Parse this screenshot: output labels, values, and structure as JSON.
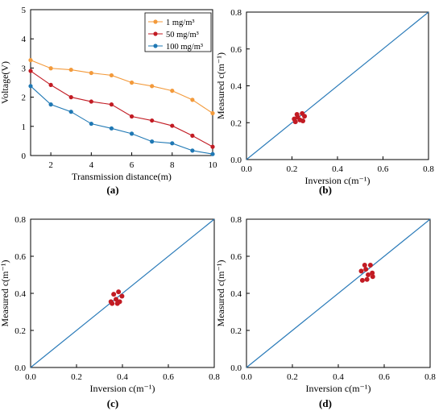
{
  "chart_data": [
    {
      "type": "line",
      "panel_label": "(a)",
      "xlabel": "Transmission distance(m)",
      "ylabel": "Voltage(V)",
      "xlim": [
        1,
        10
      ],
      "ylim": [
        0,
        5
      ],
      "xticks": [
        2,
        4,
        6,
        8,
        10
      ],
      "yticks": [
        0,
        1,
        2,
        3,
        4,
        5
      ],
      "legend_position": "top-right",
      "x": [
        1,
        2,
        3,
        4,
        5,
        6,
        7,
        8,
        9,
        10
      ],
      "series": [
        {
          "name": "1 mg/m³",
          "color": "#f39a3b",
          "values": [
            3.27,
            2.99,
            2.94,
            2.83,
            2.75,
            2.5,
            2.38,
            2.22,
            1.91,
            1.45
          ]
        },
        {
          "name": "50 mg/m³",
          "color": "#c21b23",
          "values": [
            2.9,
            2.42,
            2.0,
            1.85,
            1.75,
            1.34,
            1.2,
            1.02,
            0.68,
            0.3
          ]
        },
        {
          "name": "100 mg/m³",
          "color": "#1f78b4",
          "values": [
            2.38,
            1.75,
            1.5,
            1.09,
            0.93,
            0.75,
            0.48,
            0.42,
            0.17,
            0.05
          ]
        }
      ]
    },
    {
      "type": "scatter",
      "panel_label": "(b)",
      "xlabel": "Inversion c(m⁻¹)",
      "ylabel": "Measured c(m⁻¹)",
      "xlim": [
        0,
        0.8
      ],
      "ylim": [
        0,
        0.8
      ],
      "xticks": [
        0.0,
        0.2,
        0.4,
        0.6,
        0.8
      ],
      "yticks": [
        0.0,
        0.2,
        0.4,
        0.6,
        0.8
      ],
      "reference_line": {
        "color": "#2b7bb9"
      },
      "marker_color": "#c21b23",
      "points": [
        [
          0.21,
          0.22
        ],
        [
          0.222,
          0.245
        ],
        [
          0.245,
          0.25
        ],
        [
          0.215,
          0.205
        ],
        [
          0.235,
          0.215
        ],
        [
          0.255,
          0.235
        ],
        [
          0.225,
          0.23
        ],
        [
          0.248,
          0.21
        ]
      ]
    },
    {
      "type": "scatter",
      "panel_label": "(c)",
      "xlabel": "Inversion c(m⁻¹)",
      "ylabel": "Measured c(m⁻¹)",
      "xlim": [
        0,
        0.8
      ],
      "ylim": [
        0,
        0.8
      ],
      "xticks": [
        0.0,
        0.2,
        0.4,
        0.6,
        0.8
      ],
      "yticks": [
        0.0,
        0.2,
        0.4,
        0.6,
        0.8
      ],
      "reference_line": {
        "color": "#2b7bb9"
      },
      "marker_color": "#c21b23",
      "points": [
        [
          0.35,
          0.355
        ],
        [
          0.362,
          0.395
        ],
        [
          0.383,
          0.408
        ],
        [
          0.355,
          0.345
        ],
        [
          0.378,
          0.345
        ],
        [
          0.398,
          0.385
        ],
        [
          0.372,
          0.368
        ],
        [
          0.388,
          0.355
        ]
      ]
    },
    {
      "type": "scatter",
      "panel_label": "(d)",
      "xlabel": "Inversion c(m⁻¹)",
      "ylabel": "Measured c(m⁻¹)",
      "xlim": [
        0,
        0.8
      ],
      "ylim": [
        0,
        0.8
      ],
      "xticks": [
        0.0,
        0.2,
        0.4,
        0.6,
        0.8
      ],
      "yticks": [
        0.0,
        0.2,
        0.4,
        0.6,
        0.8
      ],
      "reference_line": {
        "color": "#2b7bb9"
      },
      "marker_color": "#c21b23",
      "points": [
        [
          0.5,
          0.52
        ],
        [
          0.515,
          0.552
        ],
        [
          0.54,
          0.552
        ],
        [
          0.505,
          0.47
        ],
        [
          0.525,
          0.475
        ],
        [
          0.548,
          0.51
        ],
        [
          0.53,
          0.5
        ],
        [
          0.55,
          0.49
        ],
        [
          0.52,
          0.53
        ]
      ]
    }
  ]
}
